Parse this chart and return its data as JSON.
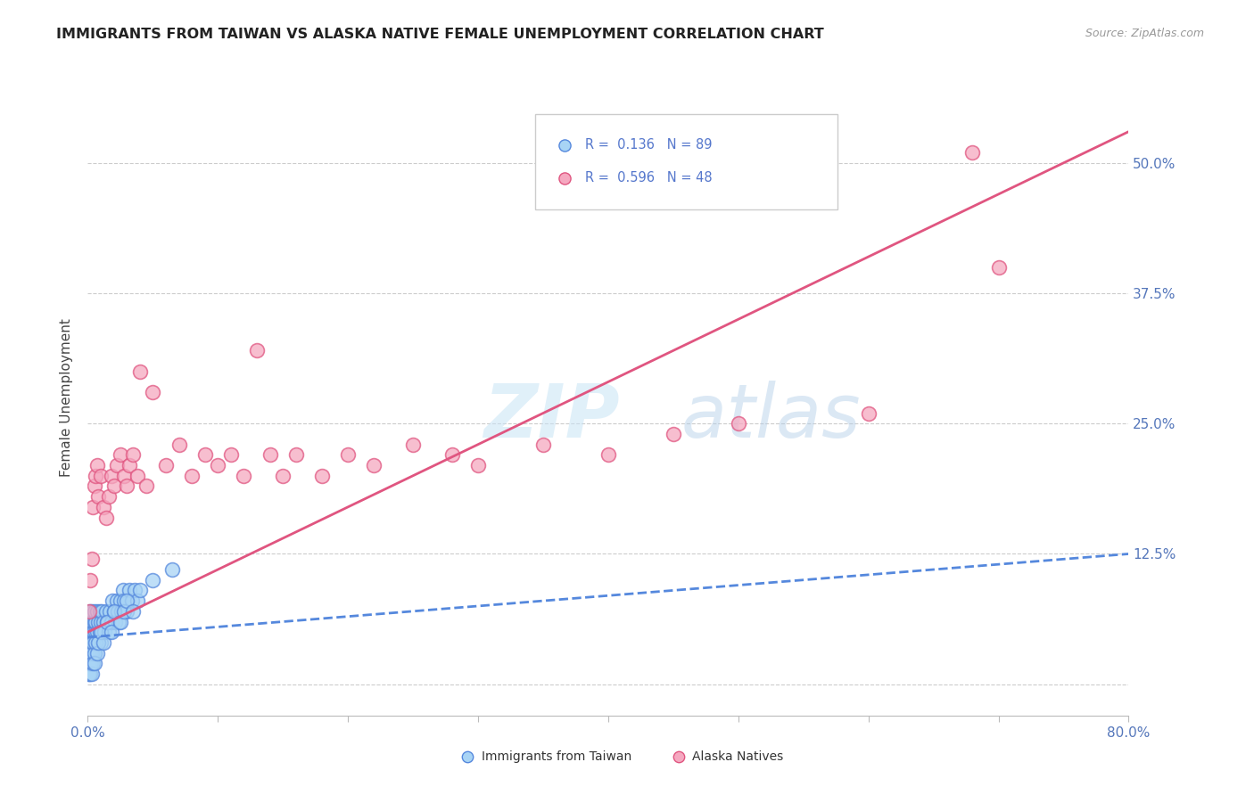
{
  "title": "IMMIGRANTS FROM TAIWAN VS ALASKA NATIVE FEMALE UNEMPLOYMENT CORRELATION CHART",
  "source": "Source: ZipAtlas.com",
  "ylabel": "Female Unemployment",
  "xmin": 0.0,
  "xmax": 0.8,
  "ymin": -0.03,
  "ymax": 0.58,
  "legend_r1": "R =  0.136",
  "legend_n1": "N = 89",
  "legend_r2": "R =  0.596",
  "legend_n2": "N = 48",
  "taiwan_color": "#A8D4F5",
  "alaska_color": "#F5A8C0",
  "taiwan_edge": "#5588DD",
  "alaska_edge": "#E05580",
  "trend_blue_color": "#5588DD",
  "trend_pink_color": "#E05580",
  "taiwan_x": [
    0.0005,
    0.0008,
    0.001,
    0.001,
    0.0012,
    0.0015,
    0.0015,
    0.002,
    0.002,
    0.002,
    0.0022,
    0.0025,
    0.003,
    0.003,
    0.003,
    0.003,
    0.0035,
    0.004,
    0.004,
    0.004,
    0.0045,
    0.005,
    0.005,
    0.005,
    0.005,
    0.006,
    0.006,
    0.006,
    0.007,
    0.007,
    0.008,
    0.008,
    0.009,
    0.009,
    0.01,
    0.01,
    0.011,
    0.011,
    0.012,
    0.013,
    0.014,
    0.015,
    0.016,
    0.017,
    0.018,
    0.019,
    0.02,
    0.021,
    0.022,
    0.023,
    0.024,
    0.025,
    0.026,
    0.027,
    0.028,
    0.03,
    0.032,
    0.034,
    0.036,
    0.038,
    0.0005,
    0.0008,
    0.001,
    0.0012,
    0.0015,
    0.002,
    0.002,
    0.0025,
    0.003,
    0.003,
    0.004,
    0.004,
    0.005,
    0.005,
    0.006,
    0.007,
    0.008,
    0.01,
    0.012,
    0.015,
    0.018,
    0.02,
    0.025,
    0.028,
    0.03,
    0.035,
    0.04,
    0.05,
    0.065
  ],
  "taiwan_y": [
    0.04,
    0.03,
    0.05,
    0.02,
    0.04,
    0.03,
    0.06,
    0.05,
    0.04,
    0.07,
    0.03,
    0.06,
    0.04,
    0.05,
    0.03,
    0.07,
    0.05,
    0.04,
    0.06,
    0.03,
    0.05,
    0.04,
    0.06,
    0.03,
    0.07,
    0.05,
    0.04,
    0.06,
    0.05,
    0.07,
    0.04,
    0.06,
    0.05,
    0.07,
    0.04,
    0.06,
    0.05,
    0.07,
    0.06,
    0.05,
    0.07,
    0.06,
    0.05,
    0.07,
    0.06,
    0.08,
    0.07,
    0.06,
    0.08,
    0.07,
    0.06,
    0.08,
    0.07,
    0.09,
    0.08,
    0.07,
    0.09,
    0.08,
    0.09,
    0.08,
    0.01,
    0.02,
    0.01,
    0.02,
    0.01,
    0.02,
    0.03,
    0.02,
    0.01,
    0.03,
    0.02,
    0.04,
    0.03,
    0.02,
    0.04,
    0.03,
    0.04,
    0.05,
    0.04,
    0.06,
    0.05,
    0.07,
    0.06,
    0.07,
    0.08,
    0.07,
    0.09,
    0.1,
    0.11
  ],
  "alaska_x": [
    0.001,
    0.002,
    0.003,
    0.004,
    0.005,
    0.006,
    0.007,
    0.008,
    0.01,
    0.012,
    0.014,
    0.016,
    0.018,
    0.02,
    0.022,
    0.025,
    0.028,
    0.03,
    0.032,
    0.035,
    0.038,
    0.04,
    0.045,
    0.05,
    0.06,
    0.07,
    0.08,
    0.09,
    0.1,
    0.11,
    0.12,
    0.13,
    0.14,
    0.15,
    0.16,
    0.18,
    0.2,
    0.22,
    0.25,
    0.28,
    0.3,
    0.35,
    0.4,
    0.45,
    0.5,
    0.6,
    0.68,
    0.7
  ],
  "alaska_y": [
    0.07,
    0.1,
    0.12,
    0.17,
    0.19,
    0.2,
    0.21,
    0.18,
    0.2,
    0.17,
    0.16,
    0.18,
    0.2,
    0.19,
    0.21,
    0.22,
    0.2,
    0.19,
    0.21,
    0.22,
    0.2,
    0.3,
    0.19,
    0.28,
    0.21,
    0.23,
    0.2,
    0.22,
    0.21,
    0.22,
    0.2,
    0.32,
    0.22,
    0.2,
    0.22,
    0.2,
    0.22,
    0.21,
    0.23,
    0.22,
    0.21,
    0.23,
    0.22,
    0.24,
    0.25,
    0.26,
    0.51,
    0.4
  ],
  "taiwan_trend_x": [
    0.0,
    0.8
  ],
  "taiwan_trend_y": [
    0.045,
    0.125
  ],
  "alaska_trend_x": [
    0.0,
    0.8
  ],
  "alaska_trend_y": [
    0.05,
    0.53
  ]
}
